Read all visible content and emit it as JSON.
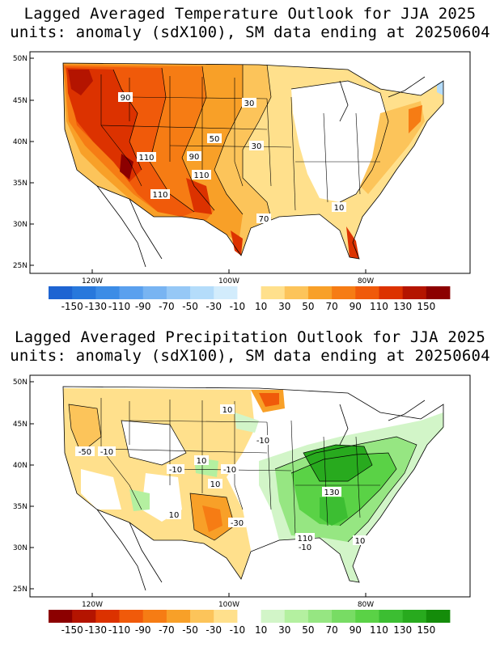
{
  "panels": [
    {
      "id": "temperature",
      "title_line1": "Lagged Averaged Temperature Outlook for JJA 2025",
      "title_line2": "units: anomaly (sdX100), SM data ending at 20250604",
      "lat_labels": [
        "50N",
        "45N",
        "40N",
        "35N",
        "30N",
        "25N"
      ],
      "lon_labels": [
        "120W",
        "100W",
        "80W"
      ],
      "contour_labels": [
        "90",
        "30",
        "50",
        "30",
        "110",
        "90",
        "110",
        "110",
        "70",
        "10"
      ],
      "colorbar": {
        "labels": [
          "-150",
          "-130",
          "-110",
          "-90",
          "-70",
          "-50",
          "-30",
          "-10",
          "10",
          "30",
          "50",
          "70",
          "90",
          "110",
          "130",
          "150"
        ],
        "colors": [
          "#1e64d2",
          "#2878dc",
          "#3c8ce6",
          "#5aa0ee",
          "#78b4f2",
          "#96c8f6",
          "#b4dcfa",
          "#d2ecfc",
          "#ffffff",
          "#ffe08c",
          "#fcc45a",
          "#f8a028",
          "#f67c14",
          "#f05a0a",
          "#dc3200",
          "#b41400",
          "#8c0000"
        ]
      }
    },
    {
      "id": "precipitation",
      "title_line1": "Lagged Averaged Precipitation Outlook for JJA 2025",
      "title_line2": "units: anomaly (sdX100), SM data ending at 20250604",
      "lat_labels": [
        "50N",
        "45N",
        "40N",
        "35N",
        "30N",
        "25N"
      ],
      "lon_labels": [
        "120W",
        "100W",
        "80W"
      ],
      "contour_labels": [
        "10",
        "-10",
        "-50",
        "-10",
        "10",
        "-10",
        "-10",
        "10",
        "10",
        "-30",
        "130",
        "110",
        "-10",
        "10"
      ],
      "colorbar": {
        "labels": [
          "-150",
          "-130",
          "-110",
          "-90",
          "-70",
          "-50",
          "-30",
          "-10",
          "10",
          "30",
          "50",
          "70",
          "90",
          "110",
          "130",
          "150"
        ],
        "colors": [
          "#8c0000",
          "#b41400",
          "#dc3200",
          "#f05a0a",
          "#f67c14",
          "#f8a028",
          "#fcc45a",
          "#ffe08c",
          "#ffffff",
          "#d2f5c8",
          "#b4f0a0",
          "#96e682",
          "#78dc64",
          "#5ad246",
          "#3cbe32",
          "#28aa1e",
          "#148c0a"
        ]
      }
    }
  ]
}
